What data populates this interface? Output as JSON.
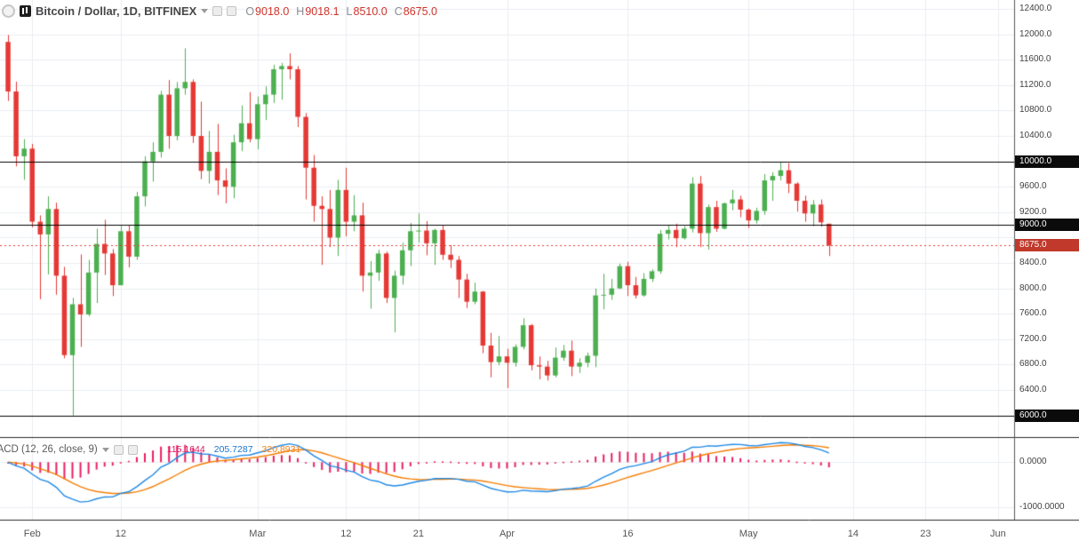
{
  "colors": {
    "up": "#4caf50",
    "down": "#e53935",
    "grid": "#ebedf0",
    "axis_text": "#424242",
    "level_line": "#000000",
    "last_price_line": "#e53935",
    "badge_black_bg": "#0b0b0b",
    "badge_red_bg": "#c0392b",
    "macd_line": "#1e88e5",
    "signal_line": "#f57c00",
    "histogram": "#e91e63",
    "separator": "#2a2a2a",
    "axis_border": "#555555"
  },
  "legend": {
    "title": "Bitcoin / Dollar, 1D, BITFINEX",
    "ohlc": {
      "open_label": "O",
      "open": "9018.0",
      "high_label": "H",
      "high": "9018.1",
      "low_label": "L",
      "low": "8510.0",
      "close_label": "C",
      "close": "8675.0"
    }
  },
  "macd": {
    "label": "MACD (12, 26, close, 9)",
    "values": [
      "115.1644",
      "205.7287",
      "320.8931"
    ],
    "axis_ticks": [
      {
        "label": "0.0000",
        "value": 0
      },
      {
        "label": "-1000.0000",
        "value": -1000
      }
    ]
  },
  "price_axis": {
    "ticks": [
      {
        "label": "12400.0",
        "price": 12400
      },
      {
        "label": "12000.0",
        "price": 12000
      },
      {
        "label": "11600.0",
        "price": 11600
      },
      {
        "label": "11200.0",
        "price": 11200
      },
      {
        "label": "10800.0",
        "price": 10800
      },
      {
        "label": "10400.0",
        "price": 10400
      },
      {
        "label": "9600.0",
        "price": 9600
      },
      {
        "label": "9200.0",
        "price": 9200
      },
      {
        "label": "8400.0",
        "price": 8400
      },
      {
        "label": "8000.0",
        "price": 8000
      },
      {
        "label": "7600.0",
        "price": 7600
      },
      {
        "label": "7200.0",
        "price": 7200
      },
      {
        "label": "6800.0",
        "price": 6800
      },
      {
        "label": "6400.0",
        "price": 6400
      }
    ],
    "levels": [
      {
        "label": "10000.0",
        "price": 10000,
        "style": "black"
      },
      {
        "label": "9000.0",
        "price": 9000,
        "style": "black"
      },
      {
        "label": "6000.0",
        "price": 6000,
        "style": "black"
      }
    ],
    "last_price": {
      "label": "8675.0",
      "price": 8675,
      "style": "red"
    }
  },
  "time_axis": {
    "ticks": [
      {
        "label": "Feb",
        "date": "2018-02-01"
      },
      {
        "label": "12",
        "date": "2018-02-12"
      },
      {
        "label": "Mar",
        "date": "2018-03-01"
      },
      {
        "label": "12",
        "date": "2018-03-12"
      },
      {
        "label": "21",
        "date": "2018-03-21"
      },
      {
        "label": "Apr",
        "date": "2018-04-01"
      },
      {
        "label": "16",
        "date": "2018-04-16"
      },
      {
        "label": "May",
        "date": "2018-05-01"
      },
      {
        "label": "14",
        "date": "2018-05-14"
      },
      {
        "label": "23",
        "date": "2018-05-23"
      },
      {
        "label": "Jun",
        "date": "2018-06-01"
      }
    ]
  },
  "chart_data": {
    "type": "candlestick",
    "symbol": "Bitcoin / Dollar",
    "interval": "1D",
    "exchange": "BITFINEX",
    "title": "Bitcoin / Dollar, 1D, BITFINEX",
    "time_range": [
      "2018-01-28",
      "2018-06-03"
    ],
    "price_range": [
      5660,
      12540
    ],
    "macd_range": [
      -1280,
      540
    ],
    "grid": {
      "h_min": 6000,
      "h_max": 12400,
      "h_step": 400
    },
    "horizontal_levels": [
      10000,
      9000,
      6000
    ],
    "last_price": 8675,
    "indicator": {
      "type": "macd",
      "fast": 12,
      "slow": 26,
      "source": "close",
      "signal": 9
    },
    "columns": [
      "time",
      "open",
      "high",
      "low",
      "close"
    ],
    "candles": [
      [
        "2018-01-29",
        11880,
        11990,
        10950,
        11100
      ],
      [
        "2018-01-30",
        11100,
        11255,
        9920,
        10080
      ],
      [
        "2018-01-31",
        10080,
        10350,
        9710,
        10200
      ],
      [
        "2018-02-01",
        10200,
        10275,
        8960,
        9050
      ],
      [
        "2018-02-02",
        9050,
        9150,
        7830,
        8850
      ],
      [
        "2018-02-03",
        8850,
        9450,
        8220,
        9250
      ],
      [
        "2018-02-04",
        9250,
        9350,
        7900,
        8200
      ],
      [
        "2018-02-05",
        8200,
        8340,
        6900,
        6950
      ],
      [
        "2018-02-06",
        6950,
        7850,
        6000,
        7750
      ],
      [
        "2018-02-07",
        7750,
        8535,
        7080,
        7590
      ],
      [
        "2018-02-08",
        7590,
        8450,
        7560,
        8250
      ],
      [
        "2018-02-09",
        8250,
        8940,
        7770,
        8700
      ],
      [
        "2018-02-10",
        8700,
        9080,
        8210,
        8550
      ],
      [
        "2018-02-11",
        8550,
        8620,
        7880,
        8050
      ],
      [
        "2018-02-12",
        8050,
        8985,
        8050,
        8900
      ],
      [
        "2018-02-13",
        8900,
        8990,
        8330,
        8500
      ],
      [
        "2018-02-14",
        8500,
        9520,
        8450,
        9450
      ],
      [
        "2018-02-15",
        9450,
        10080,
        9290,
        10000
      ],
      [
        "2018-02-16",
        10000,
        10300,
        9680,
        10150
      ],
      [
        "2018-02-17",
        10150,
        11110,
        10060,
        11050
      ],
      [
        "2018-02-18",
        11050,
        11280,
        10200,
        10400
      ],
      [
        "2018-02-19",
        10400,
        11250,
        10330,
        11150
      ],
      [
        "2018-02-20",
        11150,
        11780,
        11050,
        11250
      ],
      [
        "2018-02-21",
        11250,
        11290,
        10290,
        10400
      ],
      [
        "2018-02-22",
        10400,
        10940,
        9720,
        9850
      ],
      [
        "2018-02-23",
        9850,
        10480,
        9650,
        10150
      ],
      [
        "2018-02-24",
        10150,
        10590,
        9470,
        9700
      ],
      [
        "2018-02-25",
        9700,
        9890,
        9340,
        9600
      ],
      [
        "2018-02-26",
        9600,
        10420,
        9420,
        10300
      ],
      [
        "2018-02-27",
        10300,
        10880,
        10160,
        10600
      ],
      [
        "2018-02-28",
        10600,
        11090,
        10300,
        10350
      ],
      [
        "2018-03-01",
        10350,
        11020,
        10190,
        10900
      ],
      [
        "2018-03-02",
        10900,
        11180,
        10650,
        11050
      ],
      [
        "2018-03-03",
        11050,
        11520,
        10920,
        11450
      ],
      [
        "2018-03-04",
        11450,
        11550,
        10970,
        11500
      ],
      [
        "2018-03-05",
        11500,
        11700,
        11290,
        11450
      ],
      [
        "2018-03-06",
        11450,
        11500,
        10540,
        10700
      ],
      [
        "2018-03-07",
        10700,
        10760,
        9400,
        9900
      ],
      [
        "2018-03-08",
        9900,
        10100,
        9050,
        9300
      ],
      [
        "2018-03-09",
        9300,
        9450,
        8370,
        9250
      ],
      [
        "2018-03-10",
        9250,
        9550,
        8650,
        8800
      ],
      [
        "2018-03-11",
        8800,
        9710,
        8510,
        9550
      ],
      [
        "2018-03-12",
        9550,
        9900,
        8820,
        9050
      ],
      [
        "2018-03-13",
        9050,
        9470,
        8900,
        9150
      ],
      [
        "2018-03-14",
        9150,
        9350,
        7950,
        8200
      ],
      [
        "2018-03-15",
        8200,
        8430,
        7680,
        8250
      ],
      [
        "2018-03-16",
        8250,
        8610,
        8120,
        8550
      ],
      [
        "2018-03-17",
        8550,
        8580,
        7770,
        7850
      ],
      [
        "2018-03-18",
        7850,
        8280,
        7310,
        8200
      ],
      [
        "2018-03-19",
        8200,
        8720,
        8060,
        8600
      ],
      [
        "2018-03-20",
        8600,
        9030,
        8350,
        8900
      ],
      [
        "2018-03-21",
        8900,
        9180,
        8720,
        8910
      ],
      [
        "2018-03-22",
        8910,
        9060,
        8520,
        8710
      ],
      [
        "2018-03-23",
        8710,
        8940,
        8370,
        8920
      ],
      [
        "2018-03-24",
        8920,
        9000,
        8450,
        8530
      ],
      [
        "2018-03-25",
        8530,
        8680,
        8320,
        8450
      ],
      [
        "2018-03-26",
        8450,
        8510,
        7850,
        8140
      ],
      [
        "2018-03-27",
        8140,
        8230,
        7690,
        7790
      ],
      [
        "2018-03-28",
        7790,
        8090,
        7750,
        7950
      ],
      [
        "2018-03-29",
        7950,
        7960,
        6980,
        7100
      ],
      [
        "2018-03-30",
        7100,
        7300,
        6600,
        6840
      ],
      [
        "2018-03-31",
        6840,
        7250,
        6790,
        6930
      ],
      [
        "2018-04-01",
        6930,
        7050,
        6430,
        6830
      ],
      [
        "2018-04-02",
        6830,
        7120,
        6770,
        7080
      ],
      [
        "2018-04-03",
        7080,
        7530,
        7040,
        7420
      ],
      [
        "2018-04-04",
        7420,
        7440,
        6710,
        6790
      ],
      [
        "2018-04-05",
        6790,
        6930,
        6570,
        6770
      ],
      [
        "2018-04-06",
        6770,
        6860,
        6550,
        6630
      ],
      [
        "2018-04-07",
        6630,
        7070,
        6600,
        6910
      ],
      [
        "2018-04-08",
        6910,
        7110,
        6860,
        7020
      ],
      [
        "2018-04-09",
        7020,
        7180,
        6620,
        6770
      ],
      [
        "2018-04-10",
        6770,
        6900,
        6670,
        6830
      ],
      [
        "2018-04-11",
        6830,
        6990,
        6760,
        6940
      ],
      [
        "2018-04-12",
        6940,
        8000,
        6760,
        7890
      ],
      [
        "2018-04-13",
        7890,
        8230,
        7670,
        7900
      ],
      [
        "2018-04-14",
        7900,
        8150,
        7820,
        8000
      ],
      [
        "2018-04-15",
        8000,
        8390,
        7990,
        8350
      ],
      [
        "2018-04-16",
        8350,
        8420,
        7880,
        8050
      ],
      [
        "2018-04-17",
        8050,
        8180,
        7840,
        7890
      ],
      [
        "2018-04-18",
        7890,
        8240,
        7870,
        8150
      ],
      [
        "2018-04-19",
        8150,
        8300,
        8100,
        8270
      ],
      [
        "2018-04-20",
        8270,
        8920,
        8230,
        8860
      ],
      [
        "2018-04-21",
        8860,
        8990,
        8770,
        8920
      ],
      [
        "2018-04-22",
        8920,
        9020,
        8650,
        8790
      ],
      [
        "2018-04-23",
        8790,
        8980,
        8770,
        8940
      ],
      [
        "2018-04-24",
        8940,
        9750,
        8880,
        9650
      ],
      [
        "2018-04-25",
        9650,
        9770,
        8650,
        8870
      ],
      [
        "2018-04-26",
        8870,
        9320,
        8610,
        9280
      ],
      [
        "2018-04-27",
        9280,
        9380,
        8890,
        8940
      ],
      [
        "2018-04-28",
        8940,
        9350,
        8930,
        9340
      ],
      [
        "2018-04-29",
        9340,
        9550,
        9230,
        9400
      ],
      [
        "2018-04-30",
        9400,
        9460,
        9120,
        9240
      ],
      [
        "2018-05-01",
        9240,
        9260,
        8950,
        9070
      ],
      [
        "2018-05-02",
        9070,
        9270,
        9020,
        9220
      ],
      [
        "2018-05-03",
        9220,
        9800,
        9160,
        9700
      ],
      [
        "2018-05-04",
        9700,
        9830,
        9380,
        9770
      ],
      [
        "2018-05-05",
        9770,
        9990,
        9700,
        9860
      ],
      [
        "2018-05-06",
        9860,
        9970,
        9500,
        9650
      ],
      [
        "2018-05-07",
        9650,
        9670,
        9210,
        9380
      ],
      [
        "2018-05-08",
        9380,
        9460,
        9050,
        9180
      ],
      [
        "2018-05-09",
        9180,
        9390,
        8980,
        9320
      ],
      [
        "2018-05-10",
        9320,
        9400,
        8970,
        9040
      ],
      [
        "2018-05-11",
        9018,
        9018.1,
        8510,
        8675
      ]
    ]
  }
}
